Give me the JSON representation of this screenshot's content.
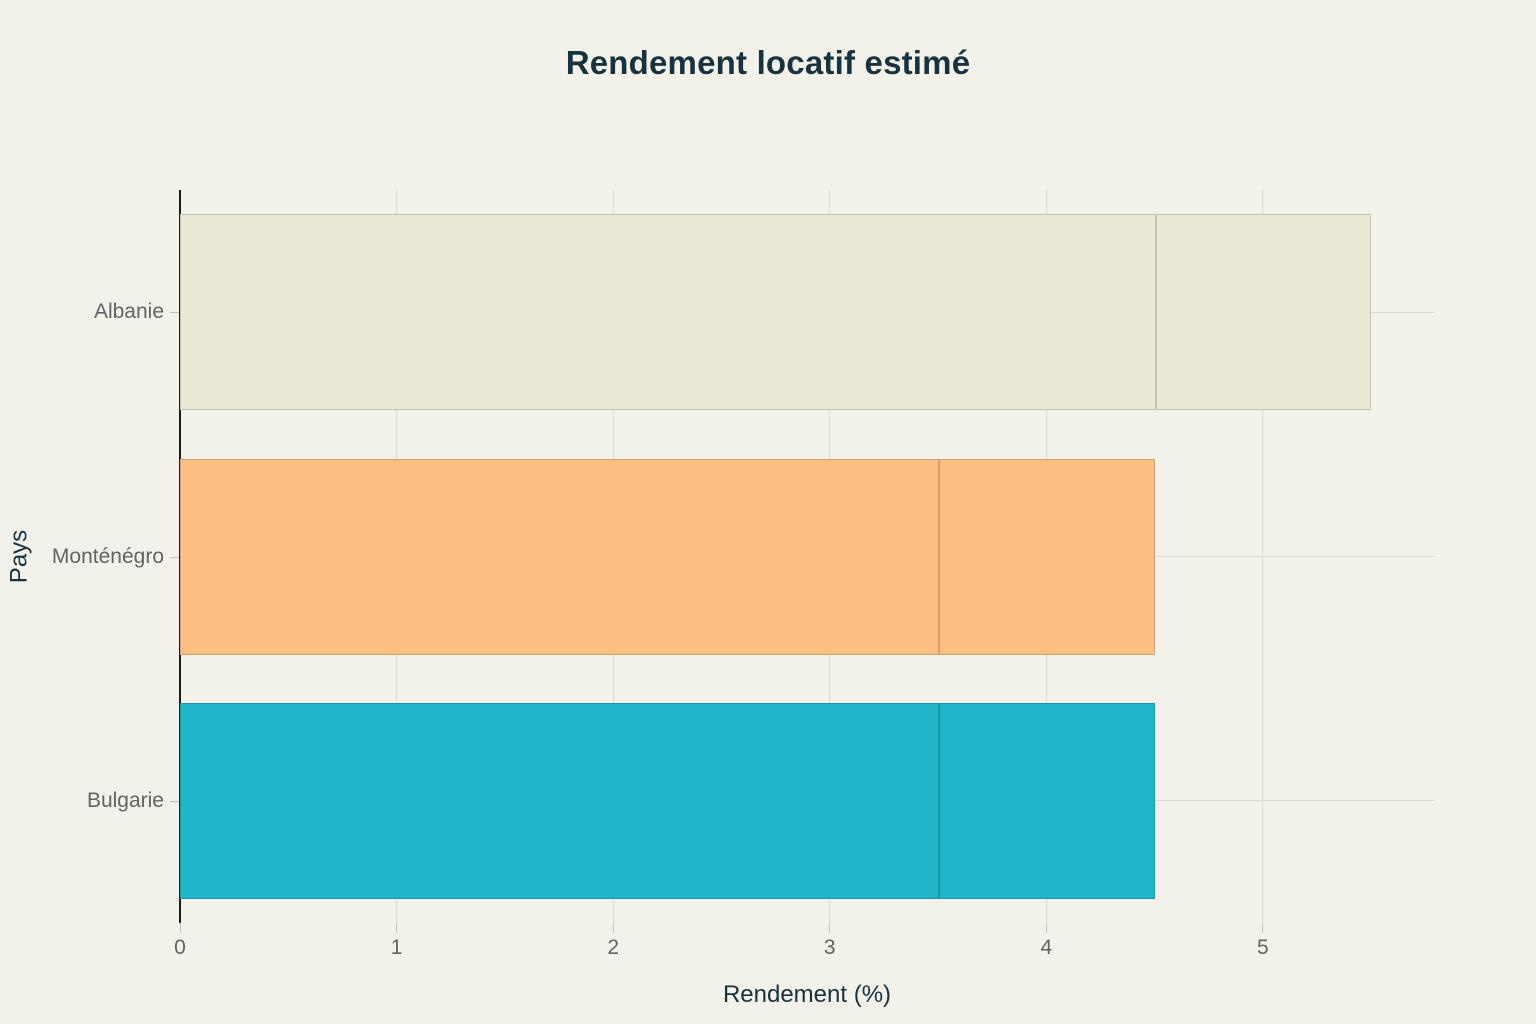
{
  "colors": {
    "background": "#f2f1ea",
    "gridline": "#dcdbd3",
    "zeroline": "#1c1c1c",
    "title_text": "#17333f",
    "tick_text": "#636363",
    "tick_mark": "#c2c1ba",
    "bar_border": "rgba(0,0,0,0.16)",
    "albanie_bar": "#eae9d6",
    "montenegro_bar": "#fdbf82",
    "bulgarie_bar": "#21b5c9"
  },
  "chart_data": {
    "type": "bar",
    "orientation": "horizontal",
    "title": "Rendement locatif estimé",
    "xlabel": "Rendement (%)",
    "ylabel": "Pays",
    "categories": [
      "Albanie",
      "Monténégro",
      "Bulgarie"
    ],
    "bars": [
      {
        "category": "Albanie",
        "slug": "albanie",
        "range_low": 4.5,
        "range_high": 5.5,
        "color": "#eae9d6"
      },
      {
        "category": "Monténégro",
        "slug": "montenegro",
        "range_low": 3.5,
        "range_high": 4.5,
        "color": "#fdbf82"
      },
      {
        "category": "Bulgarie",
        "slug": "bulgarie",
        "range_low": 3.5,
        "range_high": 4.5,
        "color": "#21b5c9"
      }
    ],
    "series": [
      {
        "name": "segment-base",
        "values": [
          4.5,
          3.5,
          3.5
        ]
      },
      {
        "name": "segment-extension",
        "values": [
          1.0,
          1.0,
          1.0
        ]
      }
    ],
    "x_ticks": [
      0,
      1,
      2,
      3,
      4,
      5
    ],
    "xlim": [
      0,
      5.79
    ],
    "grid": true,
    "legend_visible": false
  }
}
